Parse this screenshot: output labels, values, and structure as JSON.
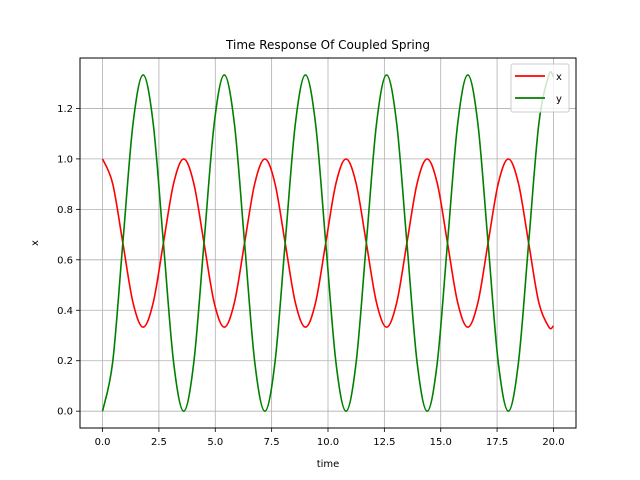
{
  "chart_data": {
    "type": "line",
    "title": "Time Response Of Coupled Spring",
    "xlabel": "time",
    "ylabel": "x",
    "xlim": [
      -1.0,
      21.0
    ],
    "ylim": [
      -0.0667,
      1.4
    ],
    "x_ticks": [
      0.0,
      2.5,
      5.0,
      7.5,
      10.0,
      12.5,
      15.0,
      17.5,
      20.0
    ],
    "x_tick_labels": [
      "0.0",
      "2.5",
      "5.0",
      "7.5",
      "10.0",
      "12.5",
      "15.0",
      "17.5",
      "20.0"
    ],
    "y_ticks": [
      0.0,
      0.2,
      0.4,
      0.6,
      0.8,
      1.0,
      1.2
    ],
    "y_tick_labels": [
      "0.0",
      "0.2",
      "0.4",
      "0.6",
      "0.8",
      "1.0",
      "1.2"
    ],
    "grid": true,
    "legend": {
      "position": "upper right"
    },
    "series": [
      {
        "name": "x",
        "color": "#ff0000",
        "x": [
          0,
          0.45,
          0.9,
          1.35,
          1.8,
          2.25,
          2.7,
          3.15,
          3.6,
          4.05,
          4.5,
          4.95,
          5.4,
          5.85,
          6.3,
          6.75,
          7.2,
          7.65,
          8.1,
          8.55,
          9.0,
          9.45,
          9.9,
          10.35,
          10.8,
          11.25,
          11.7,
          12.15,
          12.6,
          13.05,
          13.5,
          13.95,
          14.4,
          14.85,
          15.3,
          15.75,
          16.2,
          16.65,
          17.1,
          17.55,
          18.0,
          18.45,
          18.9,
          19.35,
          19.8,
          20.0
        ],
        "y": [
          1.0,
          0.902,
          0.667,
          0.431,
          0.333,
          0.431,
          0.667,
          0.902,
          1.0,
          0.902,
          0.667,
          0.431,
          0.333,
          0.431,
          0.667,
          0.902,
          1.0,
          0.902,
          0.667,
          0.431,
          0.333,
          0.431,
          0.667,
          0.902,
          1.0,
          0.902,
          0.667,
          0.431,
          0.333,
          0.431,
          0.667,
          0.902,
          1.0,
          0.902,
          0.667,
          0.431,
          0.333,
          0.431,
          0.667,
          0.902,
          1.0,
          0.902,
          0.667,
          0.431,
          0.333,
          0.338
        ]
      },
      {
        "name": "y",
        "color": "#008000",
        "x": [
          0,
          0.45,
          0.9,
          1.35,
          1.8,
          2.25,
          2.7,
          3.15,
          3.6,
          4.05,
          4.5,
          4.95,
          5.4,
          5.85,
          6.3,
          6.75,
          7.2,
          7.65,
          8.1,
          8.55,
          9.0,
          9.45,
          9.9,
          10.35,
          10.8,
          11.25,
          11.7,
          12.15,
          12.6,
          13.05,
          13.5,
          13.95,
          14.4,
          14.85,
          15.3,
          15.75,
          16.2,
          16.65,
          17.1,
          17.55,
          18.0,
          18.45,
          18.9,
          19.35,
          19.8,
          20.0
        ],
        "y": [
          0.0,
          0.195,
          0.667,
          1.138,
          1.333,
          1.138,
          0.667,
          0.195,
          0.0,
          0.195,
          0.667,
          1.138,
          1.333,
          1.138,
          0.667,
          0.195,
          0.0,
          0.195,
          0.667,
          1.138,
          1.333,
          1.138,
          0.667,
          0.195,
          0.0,
          0.195,
          0.667,
          1.138,
          1.333,
          1.138,
          0.667,
          0.195,
          0.0,
          0.195,
          0.667,
          1.138,
          1.333,
          1.138,
          0.667,
          0.195,
          0.0,
          0.195,
          0.667,
          1.138,
          1.333,
          1.324
        ]
      }
    ]
  }
}
